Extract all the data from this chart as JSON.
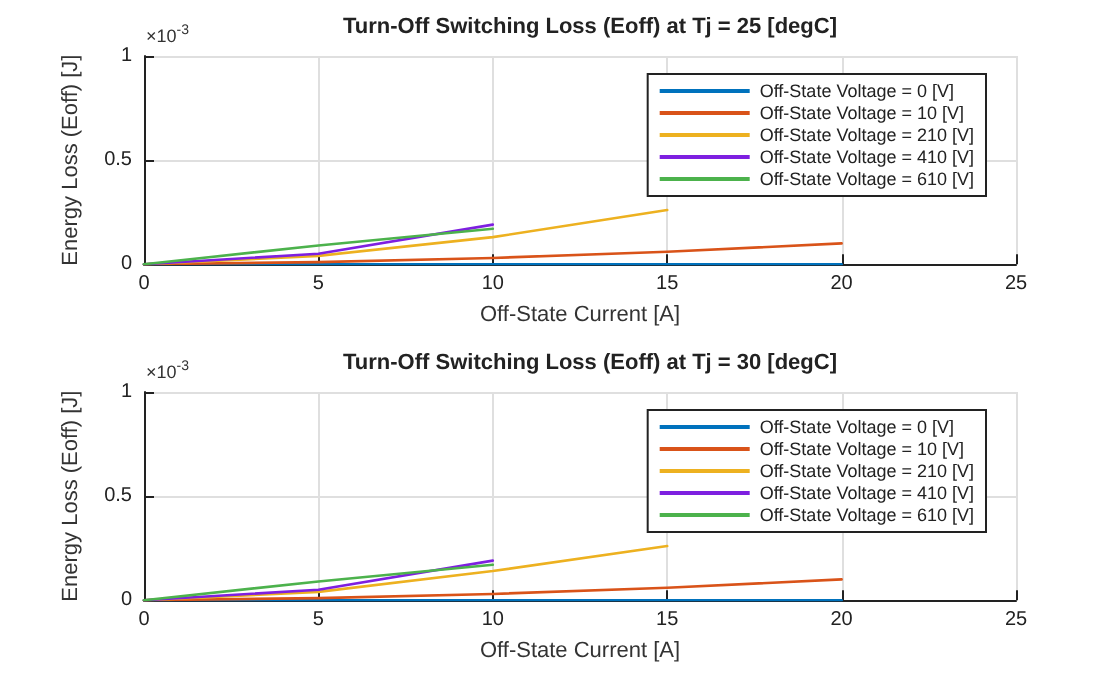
{
  "chart_data": [
    {
      "type": "line",
      "title": "Turn-Off Switching Loss (Eoff) at Tj = 25 [degC]",
      "xlabel": "Off-State Current [A]",
      "ylabel": "Energy Loss (Eoff) [J]",
      "annotations": [
        "×10$^{-3}$"
      ],
      "x": [
        0,
        5,
        10,
        15,
        20
      ],
      "xlim": [
        0,
        25
      ],
      "xticks": [
        0,
        5,
        10,
        15,
        20,
        25
      ],
      "ylim": [
        0,
        1
      ],
      "yticks": [
        0,
        0.5,
        1
      ],
      "grid": true,
      "legend": "top right",
      "marker": "none",
      "line_style": "solid",
      "series": [
        {
          "name": "Off-State Voltage = 0 [V]",
          "color": "#0072bd",
          "values": [
            0,
            0,
            0,
            0,
            0
          ]
        },
        {
          "name": "Off-State Voltage = 10 [V]",
          "color": "#d95319",
          "values": [
            0,
            0.01,
            0.03,
            0.06,
            0.1
          ]
        },
        {
          "name": "Off-State Voltage = 210 [V]",
          "color": "#edb120",
          "values": [
            0,
            0.04,
            0.13,
            0.26,
            null
          ]
        },
        {
          "name": "Off-State Voltage = 410 [V]",
          "color": "#7e1fe0",
          "values": [
            0,
            0.05,
            0.19,
            null,
            null
          ]
        },
        {
          "name": "Off-State Voltage = 610 [V]",
          "color": "#4cb24c",
          "values": [
            0,
            0.09,
            0.17,
            null,
            null
          ]
        }
      ]
    },
    {
      "type": "line",
      "title": "Turn-Off Switching Loss (Eoff) at Tj = 30 [degC]",
      "xlabel": "Off-State Current [A]",
      "ylabel": "Energy Loss (Eoff) [J]",
      "annotations": [
        "×10$^{-3}$"
      ],
      "x": [
        0,
        5,
        10,
        15,
        20
      ],
      "xlim": [
        0,
        25
      ],
      "xticks": [
        0,
        5,
        10,
        15,
        20,
        25
      ],
      "ylim": [
        0,
        1
      ],
      "yticks": [
        0,
        0.5,
        1
      ],
      "grid": true,
      "legend": "top right",
      "marker": "none",
      "line_style": "solid",
      "series": [
        {
          "name": "Off-State Voltage = 0 [V]",
          "color": "#0072bd",
          "values": [
            0,
            0,
            0,
            0,
            0
          ]
        },
        {
          "name": "Off-State Voltage = 10 [V]",
          "color": "#d95319",
          "values": [
            0,
            0.01,
            0.03,
            0.06,
            0.1
          ]
        },
        {
          "name": "Off-State Voltage = 210 [V]",
          "color": "#edb120",
          "values": [
            0,
            0.04,
            0.14,
            0.26,
            null
          ]
        },
        {
          "name": "Off-State Voltage = 410 [V]",
          "color": "#7e1fe0",
          "values": [
            0,
            0.05,
            0.19,
            null,
            null
          ]
        },
        {
          "name": "Off-State Voltage = 610 [V]",
          "color": "#4cb24c",
          "values": [
            0,
            0.09,
            0.17,
            null,
            null
          ]
        }
      ]
    }
  ]
}
